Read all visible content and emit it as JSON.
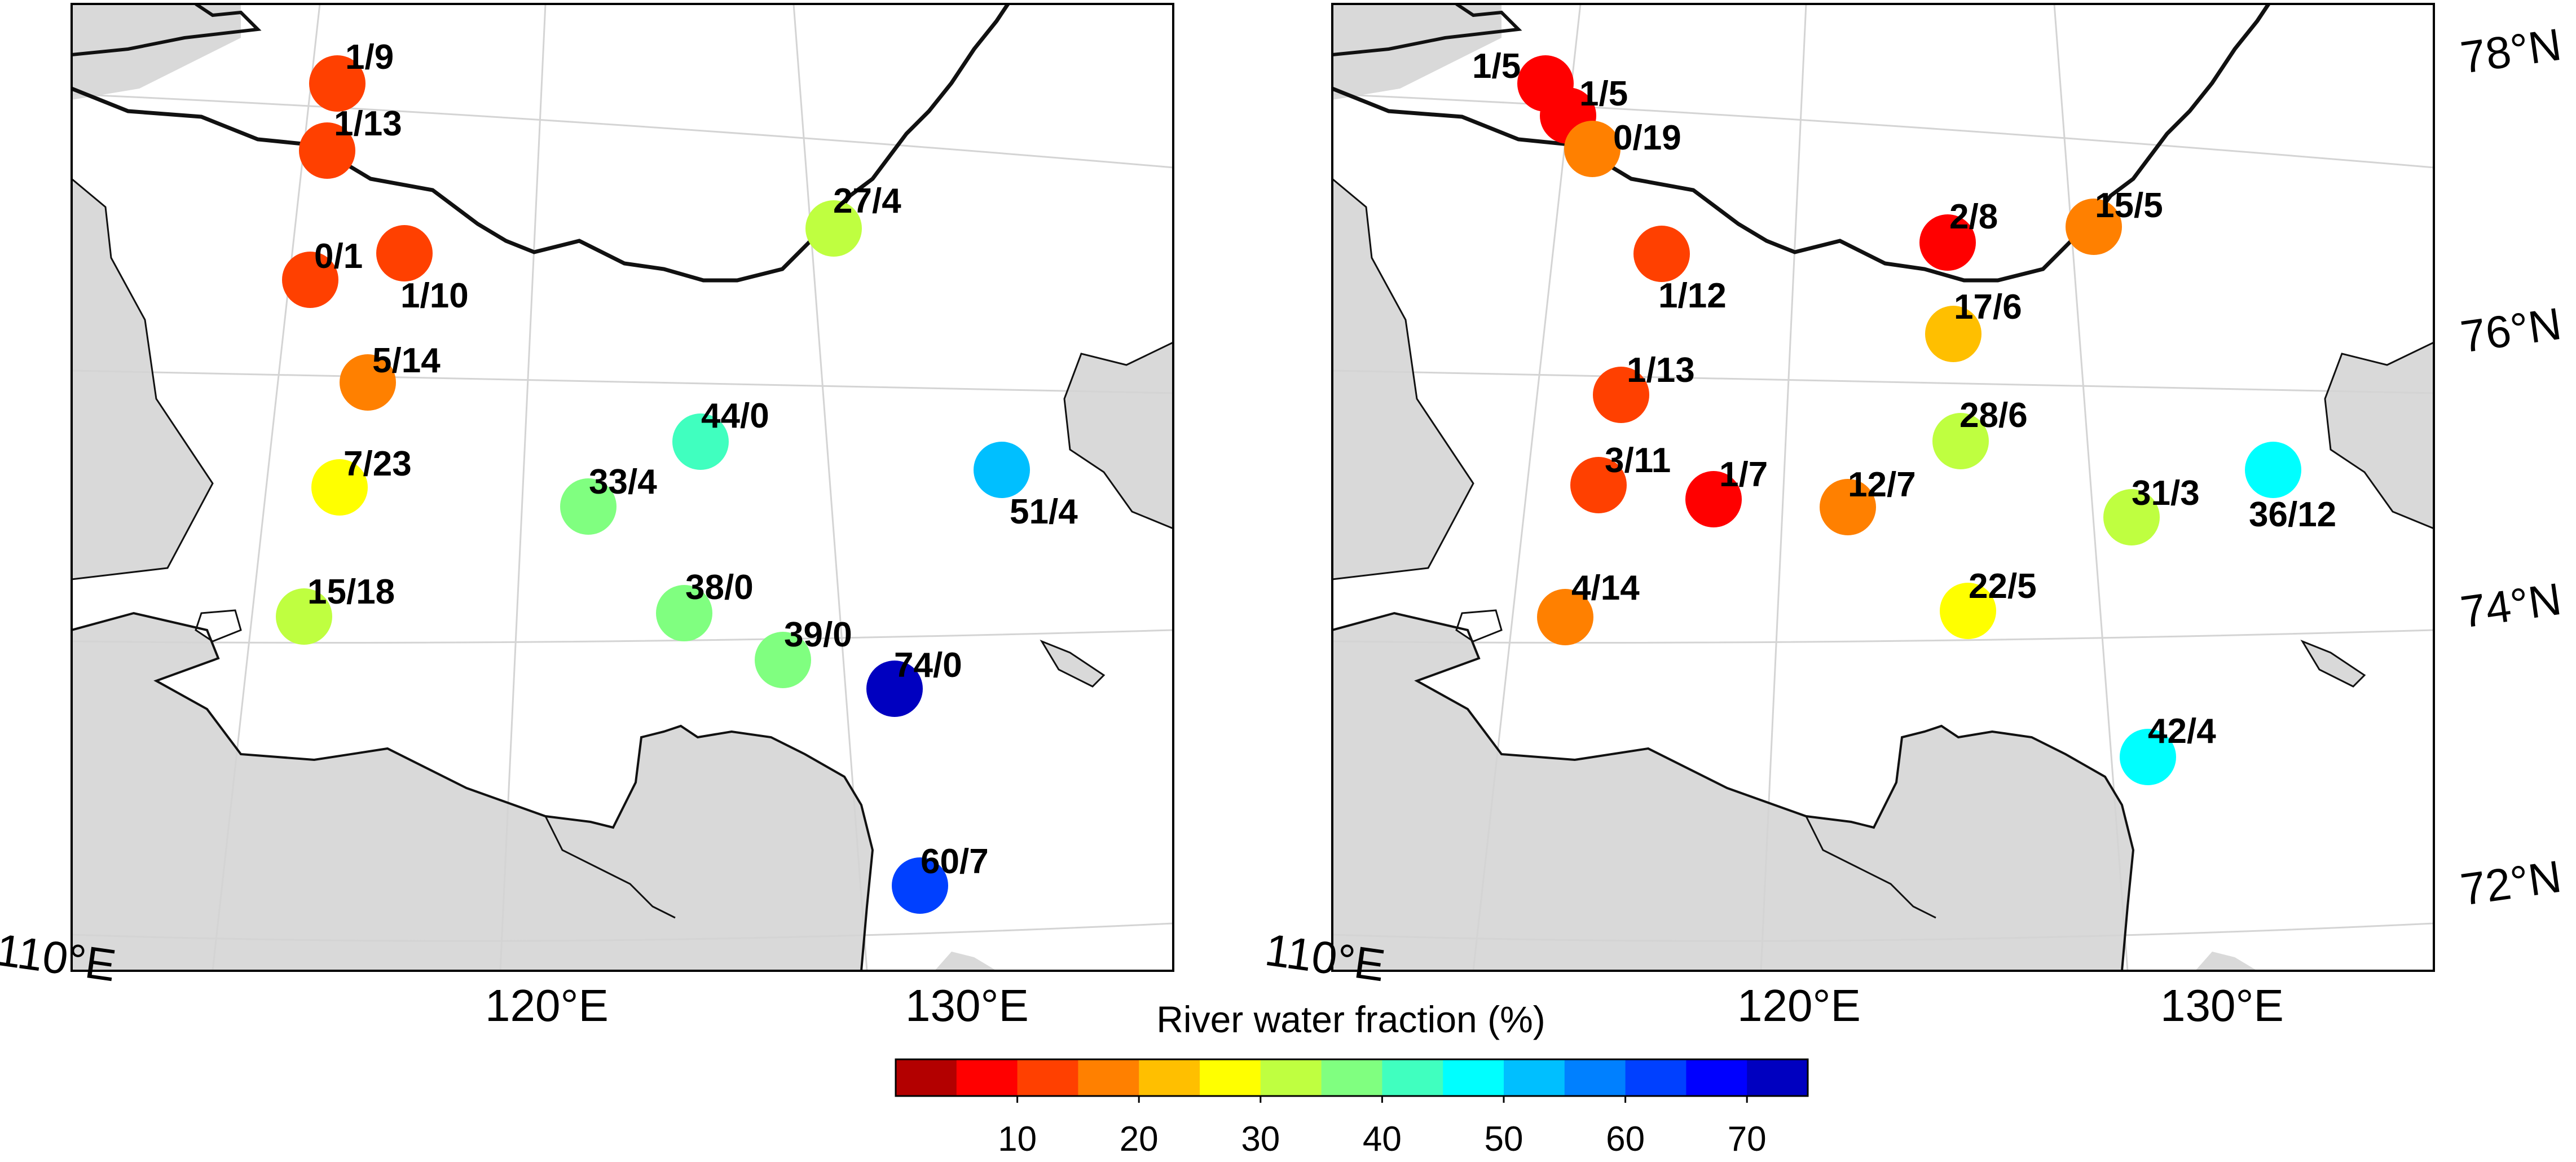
{
  "colors": {
    "land": "#d9d9d9",
    "water": "#ffffff",
    "coast": "#111111",
    "graticule": "#d4d4d4",
    "label": "#000000"
  },
  "colorbar": {
    "title": "River water fraction (%)",
    "ticks": [
      "10",
      "20",
      "30",
      "40",
      "50",
      "60",
      "70"
    ],
    "range": [
      0,
      75
    ],
    "step": 5,
    "colors": [
      "#b30000",
      "#ff0000",
      "#ff4000",
      "#ff8000",
      "#ffbf00",
      "#ffff00",
      "#bfff40",
      "#80ff80",
      "#40ffbf",
      "#00ffff",
      "#00bfff",
      "#0080ff",
      "#0040ff",
      "#0000ff",
      "#0000c0"
    ]
  },
  "panels": [
    {
      "lat_labels": [],
      "lon_labels": [
        "110°E",
        "120°E",
        "130°E"
      ],
      "stations": [
        {
          "label": "1/9",
          "fraction": 11
        },
        {
          "label": "1/13",
          "fraction": 11
        },
        {
          "label": "0/1",
          "fraction": 11
        },
        {
          "label": "1/10",
          "fraction": 11
        },
        {
          "label": "27/4",
          "fraction": 31
        },
        {
          "label": "5/14",
          "fraction": 18
        },
        {
          "label": "44/0",
          "fraction": 43
        },
        {
          "label": "7/23",
          "fraction": 27
        },
        {
          "label": "33/4",
          "fraction": 38
        },
        {
          "label": "51/4",
          "fraction": 52
        },
        {
          "label": "15/18",
          "fraction": 32
        },
        {
          "label": "38/0",
          "fraction": 38
        },
        {
          "label": "39/0",
          "fraction": 38
        },
        {
          "label": "74/0",
          "fraction": 73
        },
        {
          "label": "60/7",
          "fraction": 64
        }
      ]
    },
    {
      "lat_labels": [
        "78°N",
        "76°N",
        "74°N",
        "72°N"
      ],
      "lon_labels": [
        "110°E",
        "120°E",
        "130°E"
      ],
      "stations": [
        {
          "label": "1/5",
          "fraction": 7
        },
        {
          "label": "1/5",
          "fraction": 7
        },
        {
          "label": "0/19",
          "fraction": 18
        },
        {
          "label": "1/12",
          "fraction": 11
        },
        {
          "label": "2/8",
          "fraction": 7
        },
        {
          "label": "15/5",
          "fraction": 18
        },
        {
          "label": "17/6",
          "fraction": 22
        },
        {
          "label": "1/13",
          "fraction": 11
        },
        {
          "label": "28/6",
          "fraction": 32
        },
        {
          "label": "3/11",
          "fraction": 11
        },
        {
          "label": "1/7",
          "fraction": 7
        },
        {
          "label": "12/7",
          "fraction": 16
        },
        {
          "label": "31/3",
          "fraction": 32
        },
        {
          "label": "36/12",
          "fraction": 47
        },
        {
          "label": "4/14",
          "fraction": 15
        },
        {
          "label": "22/5",
          "fraction": 27
        },
        {
          "label": "42/4",
          "fraction": 47
        }
      ]
    }
  ]
}
